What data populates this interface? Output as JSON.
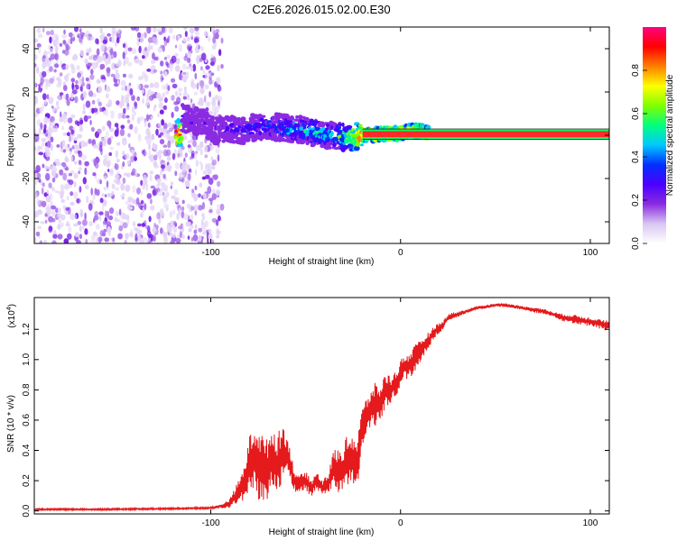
{
  "figure_title": "C2E6.2026.015.02.00.E30",
  "colors": {
    "axis": "#000000",
    "snr_line": "#e41a1c",
    "colormap": [
      "#ffffff",
      "#d9c6f2",
      "#8a2be2",
      "#4b00ff",
      "#0030ff",
      "#00c8ff",
      "#00ff80",
      "#7fff00",
      "#ffff00",
      "#ff8000",
      "#ff0000",
      "#ff0080"
    ]
  },
  "chart_data": [
    {
      "type": "heatmap",
      "title": "C2E6.2026.015.02.00.E30",
      "xlabel": "Height of straight line (km)",
      "ylabel": "Frequency (Hz)",
      "xlim": [
        -193,
        110
      ],
      "ylim": [
        -50,
        50
      ],
      "x_ticks": [
        -100,
        0,
        100
      ],
      "x_tick_labels": [
        "-100",
        "0",
        "100"
      ],
      "y_ticks": [
        -40,
        -20,
        0,
        20,
        40
      ],
      "y_tick_labels": [
        "-40",
        "-20",
        "0",
        "20",
        "40"
      ],
      "grid": false,
      "noise_region_x": [
        -193,
        -94
      ],
      "echo_trace": [
        {
          "x": -115,
          "f": 8,
          "a": 0.35
        },
        {
          "x": -105,
          "f": 6,
          "a": 0.3
        },
        {
          "x": -97,
          "f": 2,
          "a": 0.3
        },
        {
          "x": -90,
          "f": 3,
          "a": 0.35
        },
        {
          "x": -85,
          "f": 2,
          "a": 0.4
        },
        {
          "x": -80,
          "f": 3,
          "a": 0.45
        },
        {
          "x": -75,
          "f": 4,
          "a": 0.45
        },
        {
          "x": -70,
          "f": 4,
          "a": 0.5
        },
        {
          "x": -65,
          "f": 4,
          "a": 0.5
        },
        {
          "x": -60,
          "f": 3,
          "a": 0.55
        },
        {
          "x": -55,
          "f": 3,
          "a": 0.55
        },
        {
          "x": -50,
          "f": 2,
          "a": 0.55
        },
        {
          "x": -45,
          "f": 1,
          "a": 0.6
        },
        {
          "x": -40,
          "f": 0,
          "a": 0.6
        },
        {
          "x": -35,
          "f": 0,
          "a": 0.6
        },
        {
          "x": -30,
          "f": -1,
          "a": 0.65
        },
        {
          "x": -25,
          "f": -1,
          "a": 0.8
        },
        {
          "x": -20,
          "f": 0,
          "a": 0.95
        },
        {
          "x": 0,
          "f": 1,
          "a": 0.95
        },
        {
          "x": 5,
          "f": 2,
          "a": 0.9
        },
        {
          "x": 10,
          "f": 2,
          "a": 0.9
        },
        {
          "x": 15,
          "f": 1,
          "a": 0.95
        },
        {
          "x": 110,
          "f": 1,
          "a": 0.95
        }
      ]
    },
    {
      "type": "colorbar",
      "label": "Normalized spectral amplitude",
      "range": [
        0.0,
        1.0
      ],
      "ticks": [
        0.0,
        0.2,
        0.4,
        0.6,
        0.8
      ],
      "tick_labels": [
        "0.0",
        "0.2",
        "0.4",
        "0.6",
        "0.8"
      ]
    },
    {
      "type": "line",
      "title": "",
      "xlabel": "Height of straight line (km)",
      "ylabel": "SNR (10 * v/v)",
      "scale_label": "(x10",
      "scale_exponent": "4",
      "scale_close": ")",
      "xlim": [
        -193,
        110
      ],
      "ylim": [
        -0.02,
        1.41
      ],
      "x_ticks": [
        -100,
        0,
        100
      ],
      "x_tick_labels": [
        "-100",
        "0",
        "100"
      ],
      "y_ticks": [
        0.0,
        0.2,
        0.4,
        0.6,
        0.8,
        1.0,
        1.2
      ],
      "y_tick_labels": [
        "0.0",
        "0.2",
        "0.4",
        "0.6",
        "0.8",
        "1.0",
        "1.2"
      ],
      "grid": false,
      "series": [
        {
          "name": "SNR",
          "x": [
            -193,
            -160,
            -120,
            -100,
            -95,
            -90,
            -87,
            -84,
            -82,
            -80,
            -77,
            -74,
            -71,
            -68,
            -65,
            -62,
            -59,
            -56,
            -53,
            -50,
            -47,
            -44,
            -41,
            -38,
            -35,
            -32,
            -29,
            -26,
            -23,
            -21,
            -19,
            -17,
            -14,
            -11,
            -8,
            -5,
            -2,
            1,
            4,
            7,
            10,
            13,
            16,
            19,
            22,
            25,
            30,
            35,
            40,
            45,
            50,
            55,
            60,
            65,
            70,
            75,
            80,
            85,
            90,
            95,
            100,
            105,
            110
          ],
          "y": [
            0.01,
            0.01,
            0.015,
            0.02,
            0.03,
            0.05,
            0.1,
            0.15,
            0.2,
            0.3,
            0.35,
            0.3,
            0.25,
            0.35,
            0.3,
            0.4,
            0.35,
            0.2,
            0.18,
            0.2,
            0.15,
            0.2,
            0.15,
            0.18,
            0.3,
            0.25,
            0.3,
            0.35,
            0.3,
            0.5,
            0.6,
            0.65,
            0.7,
            0.7,
            0.8,
            0.8,
            0.85,
            0.95,
            0.95,
            1.0,
            1.05,
            1.1,
            1.15,
            1.2,
            1.22,
            1.28,
            1.3,
            1.32,
            1.34,
            1.35,
            1.36,
            1.36,
            1.35,
            1.34,
            1.33,
            1.32,
            1.3,
            1.28,
            1.27,
            1.26,
            1.25,
            1.24,
            1.22
          ],
          "noise_amplitude": [
            0.01,
            0.01,
            0.01,
            0.01,
            0.02,
            0.05,
            0.1,
            0.15,
            0.2,
            0.3,
            0.4,
            0.4,
            0.35,
            0.35,
            0.35,
            0.3,
            0.2,
            0.12,
            0.1,
            0.1,
            0.1,
            0.1,
            0.1,
            0.12,
            0.2,
            0.25,
            0.3,
            0.3,
            0.3,
            0.25,
            0.2,
            0.2,
            0.25,
            0.2,
            0.2,
            0.15,
            0.15,
            0.12,
            0.15,
            0.15,
            0.12,
            0.1,
            0.08,
            0.06,
            0.05,
            0.04,
            0.03,
            0.02,
            0.02,
            0.02,
            0.02,
            0.02,
            0.02,
            0.02,
            0.03,
            0.03,
            0.03,
            0.04,
            0.05,
            0.05,
            0.05,
            0.06,
            0.06
          ]
        }
      ]
    }
  ]
}
